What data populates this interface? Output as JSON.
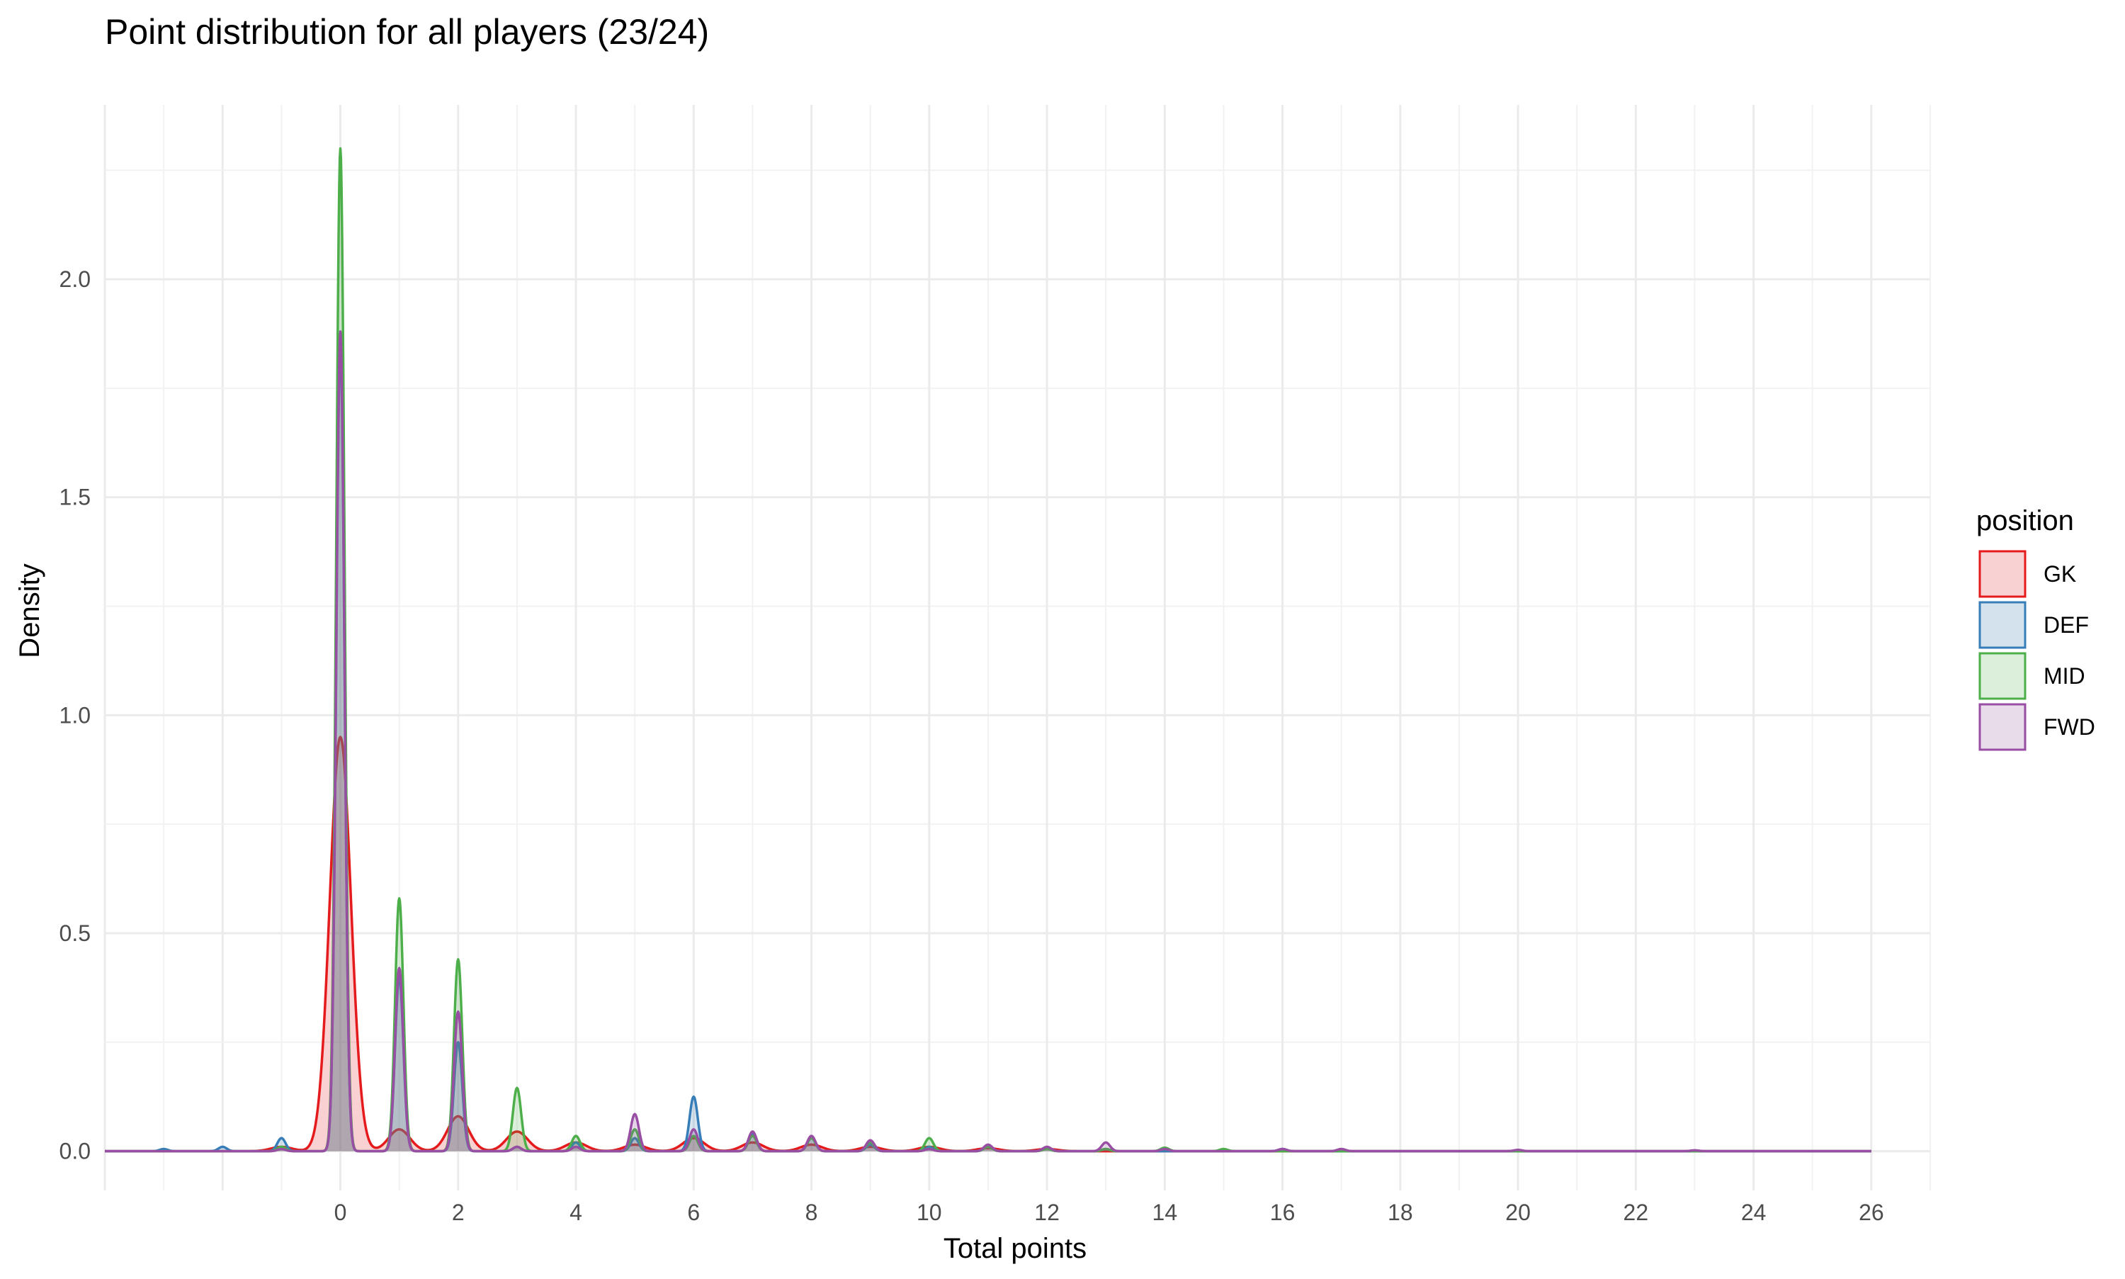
{
  "chart_data": {
    "type": "area",
    "title": "Point distribution for all players (23/24)",
    "xlabel": "Total points",
    "ylabel": "Density",
    "xlim": [
      -4,
      27
    ],
    "ylim": [
      -0.09,
      2.4
    ],
    "x_ticks": [
      0,
      2,
      4,
      6,
      8,
      10,
      12,
      14,
      16,
      18,
      20,
      22,
      24,
      26
    ],
    "x_tick_labels": [
      "0",
      "2",
      "4",
      "6",
      "8",
      "10",
      "12",
      "14",
      "16",
      "18",
      "20",
      "22",
      "24",
      "26"
    ],
    "y_ticks": [
      0,
      0.5,
      1,
      1.5,
      2
    ],
    "y_tick_labels": [
      "0.0",
      "0.5",
      "1.0",
      "1.5",
      "2.0"
    ],
    "grid": true,
    "legend": {
      "title": "position",
      "placement": "right",
      "entries": [
        "GK",
        "DEF",
        "MID",
        "FWD"
      ]
    },
    "series": [
      {
        "name": "GK",
        "color": "#E41A1C",
        "fill": "#F8D1D2",
        "bandwidth": 0.18,
        "peaks": [
          {
            "x": -1,
            "y": 0.01
          },
          {
            "x": 0,
            "y": 0.95
          },
          {
            "x": 1,
            "y": 0.05
          },
          {
            "x": 2,
            "y": 0.08
          },
          {
            "x": 3,
            "y": 0.045
          },
          {
            "x": 4,
            "y": 0.02
          },
          {
            "x": 5,
            "y": 0.015
          },
          {
            "x": 6,
            "y": 0.03
          },
          {
            "x": 7,
            "y": 0.02
          },
          {
            "x": 8,
            "y": 0.015
          },
          {
            "x": 9,
            "y": 0.01
          },
          {
            "x": 10,
            "y": 0.01
          },
          {
            "x": 11,
            "y": 0.007
          },
          {
            "x": 12,
            "y": 0.005
          }
        ]
      },
      {
        "name": "DEF",
        "color": "#377EB8",
        "fill": "#D4E2EE",
        "bandwidth": 0.07,
        "peaks": [
          {
            "x": -3,
            "y": 0.005
          },
          {
            "x": -2,
            "y": 0.01
          },
          {
            "x": -1,
            "y": 0.03
          },
          {
            "x": 0,
            "y": 1.85
          },
          {
            "x": 1,
            "y": 0.4
          },
          {
            "x": 2,
            "y": 0.25
          },
          {
            "x": 3,
            "y": 0.01
          },
          {
            "x": 4,
            "y": 0.02
          },
          {
            "x": 5,
            "y": 0.03
          },
          {
            "x": 6,
            "y": 0.125
          },
          {
            "x": 7,
            "y": 0.04
          },
          {
            "x": 8,
            "y": 0.03
          },
          {
            "x": 9,
            "y": 0.015
          },
          {
            "x": 10,
            "y": 0.01
          },
          {
            "x": 11,
            "y": 0.01
          },
          {
            "x": 12,
            "y": 0.007
          },
          {
            "x": 13,
            "y": 0.005
          },
          {
            "x": 16,
            "y": 0.005
          }
        ]
      },
      {
        "name": "MID",
        "color": "#4DAF4A",
        "fill": "#DCEFDB",
        "bandwidth": 0.07,
        "peaks": [
          {
            "x": -1,
            "y": 0.01
          },
          {
            "x": 0,
            "y": 2.3
          },
          {
            "x": 1,
            "y": 0.58
          },
          {
            "x": 2,
            "y": 0.44
          },
          {
            "x": 3,
            "y": 0.145
          },
          {
            "x": 4,
            "y": 0.035
          },
          {
            "x": 5,
            "y": 0.05
          },
          {
            "x": 6,
            "y": 0.035
          },
          {
            "x": 7,
            "y": 0.035
          },
          {
            "x": 8,
            "y": 0.03
          },
          {
            "x": 9,
            "y": 0.02
          },
          {
            "x": 10,
            "y": 0.03
          },
          {
            "x": 11,
            "y": 0.01
          },
          {
            "x": 12,
            "y": 0.005
          },
          {
            "x": 13,
            "y": 0.005
          },
          {
            "x": 14,
            "y": 0.008
          },
          {
            "x": 15,
            "y": 0.005
          }
        ]
      },
      {
        "name": "FWD",
        "color": "#984EA3",
        "fill": "#E8DBEA",
        "bandwidth": 0.07,
        "peaks": [
          {
            "x": -1,
            "y": 0.005
          },
          {
            "x": 0,
            "y": 1.88
          },
          {
            "x": 1,
            "y": 0.42
          },
          {
            "x": 2,
            "y": 0.32
          },
          {
            "x": 3,
            "y": 0.01
          },
          {
            "x": 4,
            "y": 0.01
          },
          {
            "x": 5,
            "y": 0.085
          },
          {
            "x": 6,
            "y": 0.05
          },
          {
            "x": 7,
            "y": 0.045
          },
          {
            "x": 8,
            "y": 0.035
          },
          {
            "x": 9,
            "y": 0.025
          },
          {
            "x": 10,
            "y": 0.005
          },
          {
            "x": 11,
            "y": 0.015
          },
          {
            "x": 12,
            "y": 0.01
          },
          {
            "x": 13,
            "y": 0.02
          },
          {
            "x": 14,
            "y": 0.005
          },
          {
            "x": 16,
            "y": 0.005
          },
          {
            "x": 17,
            "y": 0.005
          },
          {
            "x": 20,
            "y": 0.003
          },
          {
            "x": 23,
            "y": 0.002
          }
        ]
      }
    ]
  }
}
